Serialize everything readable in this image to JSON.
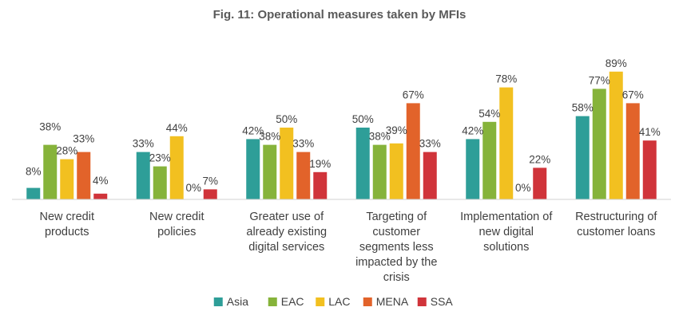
{
  "chart_data": {
    "type": "bar",
    "title": "Fig. 11: Operational measures taken by MFIs",
    "xlabel": "",
    "ylabel": "",
    "ylim": [
      0,
      100
    ],
    "grid": false,
    "legend_position": "bottom",
    "categories": [
      [
        "New credit",
        "products"
      ],
      [
        "New credit",
        "policies"
      ],
      [
        "Greater use of",
        "already existing",
        "digital services"
      ],
      [
        "Targeting of",
        "customer",
        "segments less",
        "impacted by the",
        "crisis"
      ],
      [
        "Implementation of",
        "new digital",
        "solutions"
      ],
      [
        "Restructuring of",
        "customer loans"
      ]
    ],
    "series": [
      {
        "name": "Asia",
        "color": "#2e9e98",
        "values": [
          8,
          33,
          42,
          50,
          42,
          58
        ]
      },
      {
        "name": "EAC",
        "color": "#86b33a",
        "values": [
          38,
          23,
          38,
          38,
          54,
          77
        ]
      },
      {
        "name": "LAC",
        "color": "#f2c020",
        "values": [
          28,
          44,
          50,
          39,
          78,
          89
        ]
      },
      {
        "name": "MENA",
        "color": "#e2632a",
        "values": [
          33,
          0,
          33,
          67,
          0,
          67
        ]
      },
      {
        "name": "SSA",
        "color": "#d0343a",
        "values": [
          4,
          7,
          19,
          33,
          22,
          41
        ]
      }
    ],
    "value_suffix": "%"
  }
}
